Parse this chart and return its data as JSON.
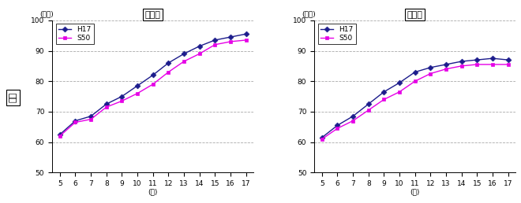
{
  "ages": [
    5,
    6,
    7,
    8,
    9,
    10,
    11,
    12,
    13,
    14,
    15,
    16,
    17
  ],
  "male_H17": [
    62.5,
    67.0,
    68.5,
    72.5,
    75.0,
    78.5,
    82.0,
    86.0,
    89.0,
    91.5,
    93.5,
    94.5,
    95.5
  ],
  "male_S50": [
    62.0,
    66.5,
    67.5,
    71.5,
    73.5,
    76.0,
    79.0,
    83.0,
    86.5,
    89.0,
    92.0,
    93.0,
    93.5
  ],
  "female_H17": [
    61.5,
    65.5,
    68.5,
    72.5,
    76.5,
    79.5,
    83.0,
    84.5,
    85.5,
    86.5,
    87.0,
    87.5,
    87.0
  ],
  "female_S50": [
    61.0,
    64.5,
    67.0,
    70.5,
    74.0,
    76.5,
    80.0,
    82.5,
    84.0,
    85.0,
    85.5,
    85.5,
    85.5
  ],
  "ylim": [
    50,
    100
  ],
  "yticks": [
    50,
    60,
    70,
    80,
    90,
    100
  ],
  "title_male": "男　子",
  "title_female": "女　子",
  "xlabel": "(歳)",
  "ylabel_unit": "(っん)",
  "ylabel_text": "座高",
  "legend_H17": "H17",
  "legend_S50": "S50",
  "color_H17": "#1c1c8c",
  "color_S50": "#e600e6",
  "bg": "#ffffff",
  "grid_color": "#aaaaaa",
  "figsize": [
    6.6,
    2.58
  ],
  "dpi": 100
}
